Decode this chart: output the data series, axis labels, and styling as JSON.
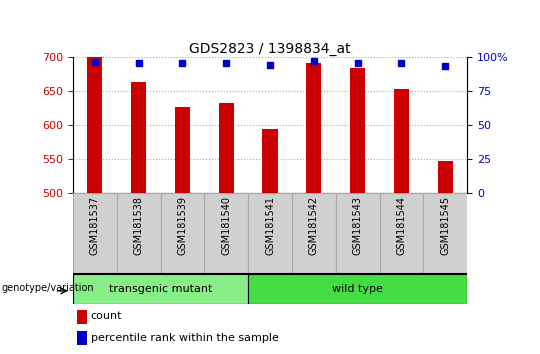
{
  "title": "GDS2823 / 1398834_at",
  "samples": [
    "GSM181537",
    "GSM181538",
    "GSM181539",
    "GSM181540",
    "GSM181541",
    "GSM181542",
    "GSM181543",
    "GSM181544",
    "GSM181545"
  ],
  "counts": [
    700,
    663,
    626,
    632,
    594,
    690,
    684,
    653,
    547
  ],
  "percentile_ranks": [
    96,
    95,
    95,
    95,
    94,
    97,
    95,
    95,
    93
  ],
  "ylim": [
    500,
    700
  ],
  "yticks": [
    500,
    550,
    600,
    650,
    700
  ],
  "right_yticks": [
    0,
    25,
    50,
    75,
    100
  ],
  "right_ylim": [
    0,
    100
  ],
  "bar_color": "#cc0000",
  "dot_color": "#0000cc",
  "groups": [
    {
      "label": "transgenic mutant",
      "start": 0,
      "end": 4,
      "color": "#88ee88"
    },
    {
      "label": "wild type",
      "start": 4,
      "end": 9,
      "color": "#44dd44"
    }
  ],
  "group_label": "genotype/variation",
  "legend_count": "count",
  "legend_percentile": "percentile rank within the sample",
  "tick_label_color_left": "#cc0000",
  "tick_label_color_right": "#0000cc",
  "bar_width": 0.35,
  "base_value": 500,
  "xtick_bg": "#d0d0d0",
  "xtick_border": "#aaaaaa"
}
